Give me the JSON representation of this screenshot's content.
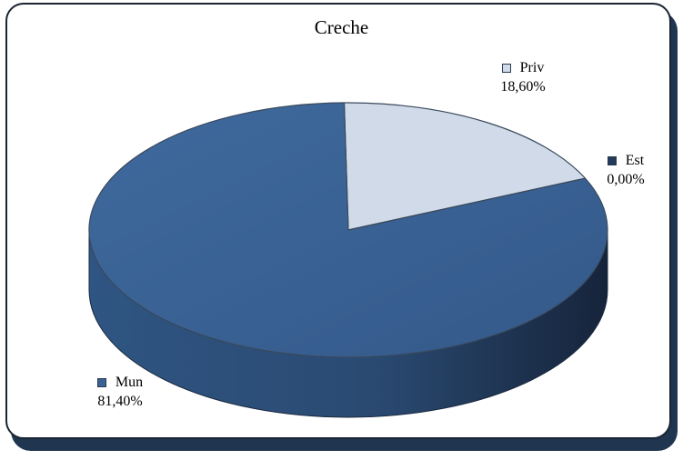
{
  "chart_data": {
    "type": "pie",
    "title": "Creche",
    "slices": [
      {
        "name": "Mun",
        "value": 81.4,
        "label": "81,40%",
        "color": "#3a6394"
      },
      {
        "name": "Priv",
        "value": 18.6,
        "label": "18,60%",
        "color": "#d0dae8"
      },
      {
        "name": "Est",
        "value": 0.0,
        "label": "0,00%",
        "color": "#233a5a"
      }
    ]
  }
}
